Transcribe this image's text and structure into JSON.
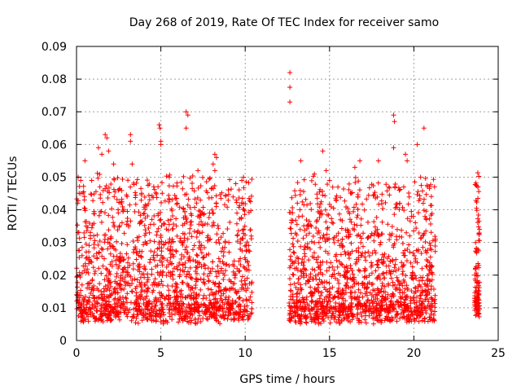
{
  "chart_data": {
    "type": "scatter",
    "title": "Day 268 of 2019, Rate Of TEC Index for receiver samo",
    "xlabel": "GPS time / hours",
    "ylabel": "ROTI / TECUs",
    "xlim": [
      0,
      25
    ],
    "ylim": [
      0,
      0.09
    ],
    "xticks": [
      0,
      5,
      10,
      15,
      20,
      25
    ],
    "xtick_labels": [
      "0",
      "5",
      "10",
      "15",
      "20",
      "25"
    ],
    "yticks": [
      0,
      0.01,
      0.02,
      0.03,
      0.04,
      0.05,
      0.06,
      0.07,
      0.08,
      0.09
    ],
    "ytick_labels": [
      "0",
      "0.01",
      "0.02",
      "0.03",
      "0.04",
      "0.05",
      "0.06",
      "0.07",
      "0.08",
      "0.09"
    ],
    "grid": true,
    "marker": "+",
    "color": "#ff0000",
    "series": [
      {
        "name": "ROTI",
        "segments": [
          {
            "x_start": 0.0,
            "x_end": 10.4,
            "typical_min": 0.004,
            "typical_max": 0.045
          },
          {
            "x_start": 12.6,
            "x_end": 21.3,
            "typical_min": 0.004,
            "typical_max": 0.045
          },
          {
            "x_start": 23.6,
            "x_end": 23.9,
            "typical_min": 0.006,
            "typical_max": 0.046
          }
        ],
        "outliers": [
          {
            "x": 0.1,
            "y": 0.05
          },
          {
            "x": 0.25,
            "y": 0.049
          },
          {
            "x": 0.5,
            "y": 0.055
          },
          {
            "x": 0.9,
            "y": 0.049
          },
          {
            "x": 1.3,
            "y": 0.059
          },
          {
            "x": 1.5,
            "y": 0.057
          },
          {
            "x": 1.7,
            "y": 0.063
          },
          {
            "x": 1.8,
            "y": 0.062
          },
          {
            "x": 1.9,
            "y": 0.058
          },
          {
            "x": 2.2,
            "y": 0.054
          },
          {
            "x": 3.2,
            "y": 0.063
          },
          {
            "x": 3.2,
            "y": 0.061
          },
          {
            "x": 3.3,
            "y": 0.054
          },
          {
            "x": 4.9,
            "y": 0.066
          },
          {
            "x": 4.95,
            "y": 0.065
          },
          {
            "x": 5.0,
            "y": 0.061
          },
          {
            "x": 5.0,
            "y": 0.06
          },
          {
            "x": 5.5,
            "y": 0.05
          },
          {
            "x": 6.5,
            "y": 0.07
          },
          {
            "x": 6.6,
            "y": 0.069
          },
          {
            "x": 6.5,
            "y": 0.065
          },
          {
            "x": 7.2,
            "y": 0.052
          },
          {
            "x": 8.2,
            "y": 0.057
          },
          {
            "x": 8.3,
            "y": 0.056
          },
          {
            "x": 8.1,
            "y": 0.054
          },
          {
            "x": 8.2,
            "y": 0.052
          },
          {
            "x": 9.9,
            "y": 0.05
          },
          {
            "x": 12.65,
            "y": 0.082
          },
          {
            "x": 12.65,
            "y": 0.0775
          },
          {
            "x": 12.65,
            "y": 0.073
          },
          {
            "x": 13.3,
            "y": 0.055
          },
          {
            "x": 14.6,
            "y": 0.058
          },
          {
            "x": 14.8,
            "y": 0.052
          },
          {
            "x": 15.0,
            "y": 0.049
          },
          {
            "x": 16.5,
            "y": 0.053
          },
          {
            "x": 16.8,
            "y": 0.055
          },
          {
            "x": 17.9,
            "y": 0.055
          },
          {
            "x": 18.8,
            "y": 0.069
          },
          {
            "x": 18.85,
            "y": 0.067
          },
          {
            "x": 18.8,
            "y": 0.059
          },
          {
            "x": 19.5,
            "y": 0.057
          },
          {
            "x": 19.6,
            "y": 0.055
          },
          {
            "x": 20.2,
            "y": 0.06
          },
          {
            "x": 20.6,
            "y": 0.065
          },
          {
            "x": 20.4,
            "y": 0.05
          },
          {
            "x": 23.8,
            "y": 0.047
          }
        ]
      }
    ]
  }
}
